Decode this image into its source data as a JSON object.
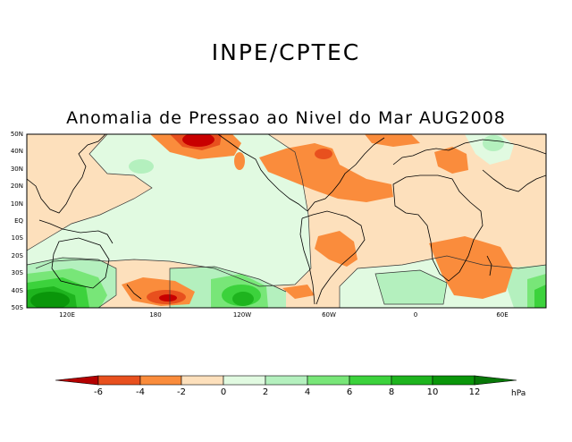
{
  "header": {
    "organization": "INPE/CPTEC",
    "title": "Anomalia de Pressao ao Nivel do Mar AUG2008"
  },
  "map": {
    "lat_labels": [
      "50N",
      "40N",
      "30N",
      "20N",
      "10N",
      "EQ",
      "10S",
      "20S",
      "30S",
      "40S",
      "50S"
    ],
    "lon_labels": [
      "120E",
      "180",
      "120W",
      "60W",
      "0",
      "60E"
    ],
    "colors": {
      "neg6": "#c80000",
      "neg4": "#e8501e",
      "neg2": "#fa8c3c",
      "near_zero_neg": "#fde0bc",
      "near_zero_pos": "#e1fae1",
      "pos2": "#b4f0be",
      "pos4": "#78e678",
      "pos6": "#3cd23c",
      "pos8": "#1eb41e",
      "pos10": "#0a960a",
      "pos12": "#056405",
      "coastline": "#000000"
    }
  },
  "colorbar": {
    "labels": [
      "-6",
      "-4",
      "-2",
      "0",
      "2",
      "4",
      "6",
      "8",
      "10",
      "12"
    ],
    "unit": "hPa",
    "colors": [
      "#b40000",
      "#e8501e",
      "#fa8c3c",
      "#fca862",
      "#fde0bc",
      "#e1fae1",
      "#b4f0be",
      "#78e678",
      "#3cd23c",
      "#1eb41e",
      "#0a960a",
      "#087808"
    ]
  }
}
